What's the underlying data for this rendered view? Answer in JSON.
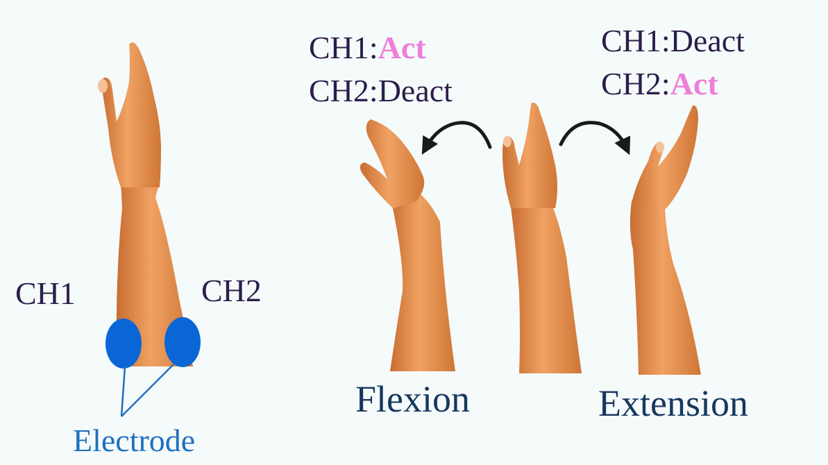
{
  "left": {
    "ch1_label": "CH1",
    "ch2_label": "CH2",
    "electrode_label": "Electrode"
  },
  "flexion": {
    "ch1_prefix": "CH1:",
    "ch1_state": "Act",
    "ch2_prefix": "CH2:",
    "ch2_state": "Deact",
    "label": "Flexion"
  },
  "extension": {
    "ch1_prefix": "CH1:",
    "ch1_state": "Deact",
    "ch2_prefix": "CH2:",
    "ch2_state": "Act",
    "label": "Extension"
  },
  "colors": {
    "background": "#f5fafa",
    "skin": "#e8914c",
    "electrode": "#0a66d6",
    "act_text": "#ee7fd9",
    "dark_text": "#2b1e4a",
    "motion_label": "#16385f",
    "electrode_text": "#1e70c0",
    "arrow": "#1a1a1a"
  }
}
